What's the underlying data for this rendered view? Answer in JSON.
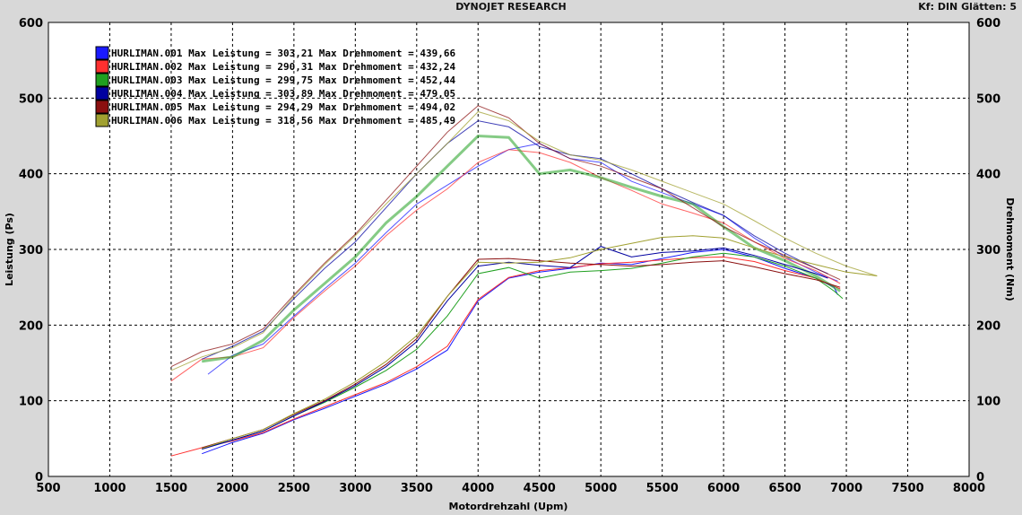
{
  "header": {
    "title": "DYNOJET RESEARCH",
    "settings": "Kf: DIN  Glätten: 5"
  },
  "chart_data": {
    "type": "line",
    "xlabel": "Motordrehzahl (Upm)",
    "ylabel": "Leistung (Ps)",
    "y2label": "Drehmoment (Nm)",
    "xlim": [
      500,
      8000
    ],
    "ylim": [
      0,
      600
    ],
    "y2lim": [
      0,
      600
    ],
    "x_ticks": [
      500,
      1000,
      1500,
      2000,
      2500,
      3000,
      3500,
      4000,
      4500,
      5000,
      5500,
      6000,
      6500,
      7000,
      7500,
      8000
    ],
    "y_ticks": [
      0,
      100,
      200,
      300,
      400,
      500,
      600
    ],
    "grid": true,
    "legend_position": "top-left",
    "series": [
      {
        "name": "HURLIMAN.001",
        "legend": "HURLIMAN.001 Max Leistung = 303,21 Max Drehmoment = 439,66",
        "color": "#1a1aff",
        "power": [
          [
            1750,
            30
          ],
          [
            2000,
            45
          ],
          [
            2250,
            57
          ],
          [
            2500,
            75
          ],
          [
            2750,
            90
          ],
          [
            3000,
            106
          ],
          [
            3250,
            122
          ],
          [
            3500,
            142
          ],
          [
            3750,
            167
          ],
          [
            4000,
            232
          ],
          [
            4250,
            262
          ],
          [
            4500,
            270
          ],
          [
            4750,
            275
          ],
          [
            5000,
            282
          ],
          [
            5250,
            280
          ],
          [
            5500,
            288
          ],
          [
            5750,
            296
          ],
          [
            6000,
            300
          ],
          [
            6250,
            290
          ],
          [
            6500,
            275
          ],
          [
            6750,
            262
          ],
          [
            6900,
            250
          ],
          [
            6930,
            240
          ]
        ],
        "torque": [
          [
            1800,
            135
          ],
          [
            2000,
            160
          ],
          [
            2250,
            175
          ],
          [
            2500,
            212
          ],
          [
            2750,
            248
          ],
          [
            3000,
            282
          ],
          [
            3250,
            322
          ],
          [
            3500,
            360
          ],
          [
            3750,
            385
          ],
          [
            4000,
            410
          ],
          [
            4250,
            432
          ],
          [
            4500,
            440
          ],
          [
            4750,
            420
          ],
          [
            5000,
            415
          ],
          [
            5250,
            390
          ],
          [
            5500,
            375
          ],
          [
            5750,
            360
          ],
          [
            6000,
            345
          ],
          [
            6250,
            315
          ],
          [
            6500,
            290
          ],
          [
            6750,
            270
          ],
          [
            6930,
            258
          ]
        ]
      },
      {
        "name": "HURLIMAN.002",
        "legend": "HURLIMAN.002 Max Leistung = 290,31 Max Drehmoment = 432,24",
        "color": "#ff3030",
        "power": [
          [
            1500,
            27
          ],
          [
            1750,
            38
          ],
          [
            2000,
            47
          ],
          [
            2250,
            58
          ],
          [
            2500,
            76
          ],
          [
            2750,
            92
          ],
          [
            3000,
            108
          ],
          [
            3250,
            124
          ],
          [
            3500,
            145
          ],
          [
            3750,
            172
          ],
          [
            4000,
            234
          ],
          [
            4250,
            263
          ],
          [
            4500,
            272
          ],
          [
            4750,
            276
          ],
          [
            5000,
            281
          ],
          [
            5250,
            283
          ],
          [
            5500,
            286
          ],
          [
            5750,
            289
          ],
          [
            6000,
            290
          ],
          [
            6250,
            284
          ],
          [
            6500,
            272
          ],
          [
            6750,
            262
          ],
          [
            6950,
            248
          ]
        ],
        "torque": [
          [
            1500,
            126
          ],
          [
            1750,
            155
          ],
          [
            2000,
            158
          ],
          [
            2250,
            170
          ],
          [
            2500,
            210
          ],
          [
            2750,
            245
          ],
          [
            3000,
            278
          ],
          [
            3250,
            318
          ],
          [
            3500,
            352
          ],
          [
            3750,
            380
          ],
          [
            4000,
            415
          ],
          [
            4250,
            432
          ],
          [
            4500,
            428
          ],
          [
            4750,
            415
          ],
          [
            5000,
            395
          ],
          [
            5250,
            378
          ],
          [
            5500,
            360
          ],
          [
            5750,
            348
          ],
          [
            6000,
            335
          ],
          [
            6250,
            310
          ],
          [
            6500,
            288
          ],
          [
            6750,
            272
          ],
          [
            6950,
            255
          ]
        ]
      },
      {
        "name": "HURLIMAN.003",
        "legend": "HURLIMAN.003 Max Leistung = 299,75 Max Drehmoment = 452,44",
        "color": "#20a020",
        "power": [
          [
            1750,
            37
          ],
          [
            2000,
            48
          ],
          [
            2250,
            60
          ],
          [
            2500,
            80
          ],
          [
            2750,
            98
          ],
          [
            3000,
            118
          ],
          [
            3250,
            140
          ],
          [
            3500,
            168
          ],
          [
            3750,
            212
          ],
          [
            4000,
            268
          ],
          [
            4250,
            276
          ],
          [
            4500,
            262
          ],
          [
            4750,
            270
          ],
          [
            5000,
            272
          ],
          [
            5250,
            275
          ],
          [
            5500,
            282
          ],
          [
            5750,
            290
          ],
          [
            6000,
            295
          ],
          [
            6250,
            290
          ],
          [
            6500,
            278
          ],
          [
            6750,
            262
          ],
          [
            6900,
            245
          ],
          [
            6970,
            235
          ]
        ],
        "torque": [
          [
            1750,
            152
          ],
          [
            2000,
            158
          ],
          [
            2250,
            180
          ],
          [
            2500,
            220
          ],
          [
            2750,
            255
          ],
          [
            3000,
            290
          ],
          [
            3250,
            335
          ],
          [
            3500,
            370
          ],
          [
            3750,
            410
          ],
          [
            4000,
            450
          ],
          [
            4250,
            448
          ],
          [
            4500,
            400
          ],
          [
            4750,
            405
          ],
          [
            5000,
            395
          ],
          [
            5250,
            382
          ],
          [
            5500,
            370
          ],
          [
            5750,
            360
          ],
          [
            6000,
            330
          ],
          [
            6250,
            302
          ],
          [
            6500,
            285
          ],
          [
            6750,
            265
          ],
          [
            6950,
            245
          ]
        ]
      },
      {
        "name": "HURLIMAN.004",
        "legend": "HURLIMAN.004 Max Leistung = 303,89 Max Drehmoment = 479,05",
        "color": "#0000a0",
        "power": [
          [
            1750,
            36
          ],
          [
            2000,
            48
          ],
          [
            2250,
            60
          ],
          [
            2500,
            80
          ],
          [
            2750,
            99
          ],
          [
            3000,
            120
          ],
          [
            3250,
            145
          ],
          [
            3500,
            178
          ],
          [
            3750,
            232
          ],
          [
            4000,
            278
          ],
          [
            4250,
            283
          ],
          [
            4500,
            279
          ],
          [
            4750,
            276
          ],
          [
            5000,
            304
          ],
          [
            5250,
            290
          ],
          [
            5500,
            296
          ],
          [
            5750,
            298
          ],
          [
            6000,
            302
          ],
          [
            6250,
            292
          ],
          [
            6500,
            280
          ],
          [
            6750,
            268
          ],
          [
            6850,
            262
          ]
        ],
        "torque": [
          [
            1750,
            155
          ],
          [
            2000,
            172
          ],
          [
            2250,
            192
          ],
          [
            2500,
            235
          ],
          [
            2750,
            275
          ],
          [
            3000,
            310
          ],
          [
            3250,
            355
          ],
          [
            3500,
            400
          ],
          [
            3750,
            440
          ],
          [
            4000,
            470
          ],
          [
            4250,
            462
          ],
          [
            4500,
            436
          ],
          [
            4750,
            425
          ],
          [
            5000,
            420
          ],
          [
            5250,
            400
          ],
          [
            5500,
            380
          ],
          [
            5750,
            362
          ],
          [
            6000,
            345
          ],
          [
            6250,
            318
          ],
          [
            6500,
            295
          ],
          [
            6750,
            275
          ],
          [
            6850,
            268
          ]
        ]
      },
      {
        "name": "HURLIMAN.005",
        "legend": "HURLIMAN.005 Max Leistung = 294,29 Max Drehmoment = 494,02",
        "color": "#8b1010",
        "power": [
          [
            1750,
            38
          ],
          [
            2000,
            50
          ],
          [
            2250,
            62
          ],
          [
            2500,
            82
          ],
          [
            2750,
            100
          ],
          [
            3000,
            122
          ],
          [
            3250,
            148
          ],
          [
            3500,
            182
          ],
          [
            3750,
            238
          ],
          [
            4000,
            287
          ],
          [
            4250,
            288
          ],
          [
            4500,
            285
          ],
          [
            4750,
            282
          ],
          [
            5000,
            280
          ],
          [
            5250,
            278
          ],
          [
            5500,
            280
          ],
          [
            5750,
            283
          ],
          [
            6000,
            285
          ],
          [
            6250,
            277
          ],
          [
            6500,
            268
          ],
          [
            6750,
            260
          ],
          [
            6950,
            250
          ]
        ],
        "torque": [
          [
            1500,
            145
          ],
          [
            1750,
            165
          ],
          [
            2000,
            175
          ],
          [
            2250,
            195
          ],
          [
            2500,
            240
          ],
          [
            2750,
            282
          ],
          [
            3000,
            320
          ],
          [
            3250,
            365
          ],
          [
            3500,
            410
          ],
          [
            3750,
            455
          ],
          [
            4000,
            490
          ],
          [
            4250,
            474
          ],
          [
            4500,
            440
          ],
          [
            4750,
            420
          ],
          [
            5000,
            410
          ],
          [
            5250,
            395
          ],
          [
            5500,
            380
          ],
          [
            5750,
            355
          ],
          [
            6000,
            330
          ],
          [
            6250,
            310
          ],
          [
            6500,
            292
          ],
          [
            6750,
            275
          ],
          [
            6950,
            260
          ]
        ]
      },
      {
        "name": "HURLIMAN.006",
        "legend": "HURLIMAN.006 Max Leistung = 318,56 Max Drehmoment = 485,49",
        "color": "#a0a030",
        "power": [
          [
            1750,
            37
          ],
          [
            2000,
            50
          ],
          [
            2250,
            62
          ],
          [
            2500,
            83
          ],
          [
            2750,
            102
          ],
          [
            3000,
            125
          ],
          [
            3250,
            152
          ],
          [
            3500,
            186
          ],
          [
            3750,
            238
          ],
          [
            4000,
            283
          ],
          [
            4250,
            282
          ],
          [
            4500,
            283
          ],
          [
            4750,
            289
          ],
          [
            5000,
            300
          ],
          [
            5250,
            308
          ],
          [
            5500,
            316
          ],
          [
            5750,
            318
          ],
          [
            6000,
            315
          ],
          [
            6250,
            302
          ],
          [
            6500,
            290
          ],
          [
            6750,
            280
          ],
          [
            7000,
            270
          ],
          [
            7250,
            265
          ]
        ],
        "torque": [
          [
            1500,
            140
          ],
          [
            1750,
            158
          ],
          [
            2000,
            170
          ],
          [
            2250,
            190
          ],
          [
            2500,
            238
          ],
          [
            2750,
            280
          ],
          [
            3000,
            318
          ],
          [
            3250,
            360
          ],
          [
            3500,
            400
          ],
          [
            3750,
            440
          ],
          [
            4000,
            482
          ],
          [
            4250,
            470
          ],
          [
            4500,
            443
          ],
          [
            4750,
            425
          ],
          [
            5000,
            418
          ],
          [
            5250,
            405
          ],
          [
            5500,
            390
          ],
          [
            5750,
            375
          ],
          [
            6000,
            360
          ],
          [
            6250,
            338
          ],
          [
            6500,
            315
          ],
          [
            6750,
            295
          ],
          [
            7000,
            278
          ],
          [
            7250,
            265
          ]
        ]
      }
    ]
  }
}
